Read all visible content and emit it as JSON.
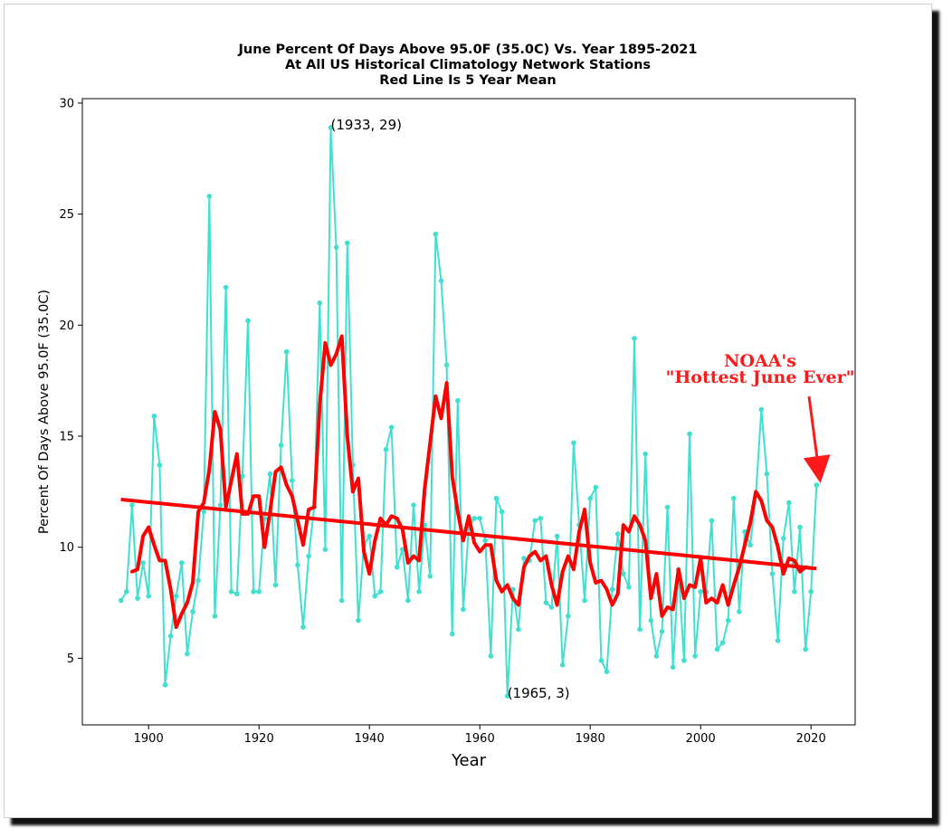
{
  "chart_data": {
    "type": "line",
    "title": [
      "June Percent Of Days Above 95.0F (35.0C) Vs. Year 1895-2021",
      "At All US Historical Climatology Network Stations",
      "Red Line Is 5 Year Mean"
    ],
    "xlabel": "Year",
    "ylabel": "Percent Of Days Above 95.0F (35.0C)",
    "xlim": [
      1888,
      2028
    ],
    "ylim": [
      2,
      30.2
    ],
    "xticks": [
      1900,
      1920,
      1940,
      1960,
      1980,
      2000,
      2020
    ],
    "yticks": [
      5,
      10,
      15,
      20,
      25,
      30
    ],
    "grid": false,
    "series": [
      {
        "color": "#40e0d0",
        "style": "line-with-points",
        "x": [
          1895,
          1896,
          1897,
          1898,
          1899,
          1900,
          1901,
          1902,
          1903,
          1904,
          1905,
          1906,
          1907,
          1908,
          1909,
          1910,
          1911,
          1912,
          1913,
          1914,
          1915,
          1916,
          1917,
          1918,
          1919,
          1920,
          1921,
          1922,
          1923,
          1924,
          1925,
          1926,
          1927,
          1928,
          1929,
          1930,
          1931,
          1932,
          1933,
          1934,
          1935,
          1936,
          1937,
          1938,
          1939,
          1940,
          1941,
          1942,
          1943,
          1944,
          1945,
          1946,
          1947,
          1948,
          1949,
          1950,
          1951,
          1952,
          1953,
          1954,
          1955,
          1956,
          1957,
          1958,
          1959,
          1960,
          1961,
          1962,
          1963,
          1964,
          1965,
          1966,
          1967,
          1968,
          1969,
          1970,
          1971,
          1972,
          1973,
          1974,
          1975,
          1976,
          1977,
          1978,
          1979,
          1980,
          1981,
          1982,
          1983,
          1984,
          1985,
          1986,
          1987,
          1988,
          1989,
          1990,
          1991,
          1992,
          1993,
          1994,
          1995,
          1996,
          1997,
          1998,
          1999,
          2000,
          2001,
          2002,
          2003,
          2004,
          2005,
          2006,
          2007,
          2008,
          2009,
          2010,
          2011,
          2012,
          2013,
          2014,
          2015,
          2016,
          2017,
          2018,
          2019,
          2020,
          2021
        ],
        "y": [
          7.6,
          8.0,
          11.9,
          7.7,
          9.3,
          7.8,
          15.9,
          13.7,
          3.8,
          6.0,
          7.8,
          9.3,
          5.2,
          7.1,
          8.5,
          11.6,
          25.8,
          6.9,
          11.9,
          21.7,
          8.0,
          7.9,
          13.2,
          20.2,
          8.0,
          8.0,
          11.3,
          13.3,
          8.3,
          14.6,
          18.8,
          13.0,
          9.2,
          6.4,
          9.6,
          11.8,
          21.0,
          9.9,
          28.9,
          23.5,
          7.6,
          23.7,
          13.7,
          6.7,
          10.1,
          10.5,
          7.8,
          8.0,
          14.4,
          15.4,
          9.1,
          9.9,
          7.6,
          11.9,
          8.0,
          11.0,
          8.7,
          24.1,
          22.0,
          18.2,
          6.1,
          16.6,
          7.2,
          10.9,
          11.3,
          11.3,
          10.3,
          5.1,
          12.2,
          11.6,
          3.3,
          8.1,
          6.3,
          9.5,
          9.4,
          11.2,
          11.3,
          7.5,
          7.3,
          10.5,
          4.7,
          6.9,
          14.7,
          11.0,
          7.6,
          12.2,
          12.7,
          4.9,
          4.4,
          8.1,
          10.6,
          8.8,
          8.2,
          19.4,
          6.3,
          14.2,
          6.7,
          5.1,
          6.2,
          11.8,
          4.6,
          9.0,
          4.9,
          15.1,
          5.1,
          8.0,
          8.0,
          11.2,
          5.4,
          5.7,
          6.7,
          12.2,
          7.1,
          10.7,
          10.1,
          12.3,
          16.2,
          13.3,
          8.8,
          5.8,
          10.4,
          12.0,
          8.0,
          10.9,
          5.4,
          8.0,
          12.8
        ]
      },
      {
        "color": "#ff0000",
        "style": "thick-line",
        "x": [
          1897,
          1898,
          1899,
          1900,
          1901,
          1902,
          1903,
          1904,
          1905,
          1906,
          1907,
          1908,
          1909,
          1910,
          1911,
          1912,
          1913,
          1914,
          1915,
          1916,
          1917,
          1918,
          1919,
          1920,
          1921,
          1922,
          1923,
          1924,
          1925,
          1926,
          1927,
          1928,
          1929,
          1930,
          1931,
          1932,
          1933,
          1934,
          1935,
          1936,
          1937,
          1938,
          1939,
          1940,
          1941,
          1942,
          1943,
          1944,
          1945,
          1946,
          1947,
          1948,
          1949,
          1950,
          1951,
          1952,
          1953,
          1954,
          1955,
          1956,
          1957,
          1958,
          1959,
          1960,
          1961,
          1962,
          1963,
          1964,
          1965,
          1966,
          1967,
          1968,
          1969,
          1970,
          1971,
          1972,
          1973,
          1974,
          1975,
          1976,
          1977,
          1978,
          1979,
          1980,
          1981,
          1982,
          1983,
          1984,
          1985,
          1986,
          1987,
          1988,
          1989,
          1990,
          1991,
          1992,
          1993,
          1994,
          1995,
          1996,
          1997,
          1998,
          1999,
          2000,
          2001,
          2002,
          2003,
          2004,
          2005,
          2006,
          2007,
          2008,
          2009,
          2010,
          2011,
          2012,
          2013,
          2014,
          2015,
          2016,
          2017,
          2018,
          2019
        ],
        "y": [
          8.9,
          9.0,
          10.5,
          10.9,
          10.1,
          9.4,
          9.4,
          8.1,
          6.4,
          7.0,
          7.5,
          8.4,
          11.6,
          12.0,
          13.5,
          16.1,
          15.3,
          11.8,
          13.0,
          14.2,
          11.5,
          11.5,
          12.3,
          12.3,
          10.0,
          11.6,
          13.4,
          13.6,
          12.8,
          12.3,
          11.2,
          10.1,
          11.7,
          11.8,
          16.4,
          19.2,
          18.2,
          18.7,
          19.5,
          15.0,
          12.5,
          13.1,
          9.8,
          8.8,
          10.3,
          11.3,
          11.0,
          11.4,
          11.3,
          10.8,
          9.3,
          9.6,
          9.4,
          12.6,
          14.7,
          16.8,
          15.8,
          17.4,
          13.2,
          11.6,
          10.3,
          11.4,
          10.2,
          9.8,
          10.1,
          10.1,
          8.5,
          8.0,
          8.3,
          7.7,
          7.4,
          9.1,
          9.6,
          9.8,
          9.4,
          9.6,
          8.3,
          7.4,
          8.9,
          9.6,
          9.0,
          10.7,
          11.7,
          9.3,
          8.4,
          8.5,
          8.1,
          7.4,
          7.9,
          11.0,
          10.7,
          11.4,
          11.0,
          10.3,
          7.7,
          8.8,
          6.9,
          7.3,
          7.2,
          9.0,
          7.7,
          8.3,
          8.2,
          9.5,
          7.5,
          7.7,
          7.5,
          8.3,
          7.4,
          8.3,
          9.1,
          10.1,
          11.1,
          12.5,
          12.1,
          11.2,
          10.9,
          10.0,
          8.8,
          9.5,
          9.4,
          8.9,
          9.1
        ]
      },
      {
        "color": "#ff0000",
        "style": "trend",
        "x": [
          1895,
          2021
        ],
        "y": [
          12.15,
          9.04
        ]
      }
    ],
    "annotations": [
      {
        "text": "(1933, 29)",
        "x": 1933,
        "y": 28.9
      },
      {
        "text": "(1965, 3)",
        "x": 1965,
        "y": 3.3
      }
    ],
    "callout": {
      "lines": [
        "NOAA's",
        "\"Hottest June Ever\""
      ],
      "color": "#ff1a1a",
      "arrow_target": {
        "x": 2021,
        "y": 12.8
      }
    }
  }
}
